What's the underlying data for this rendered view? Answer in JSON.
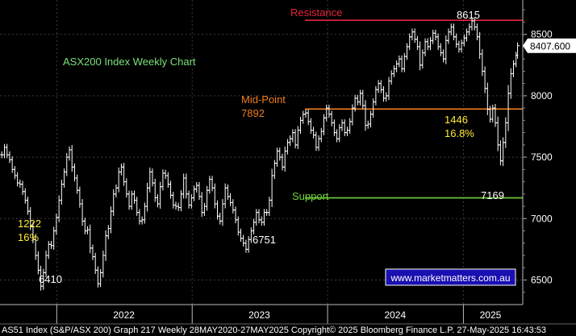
{
  "chart_data": {
    "type": "ohlc",
    "title": "ASX200 Index Weekly Chart",
    "watermark": "www.marketmatters.com.au",
    "ylim": [
      6300,
      8780
    ],
    "yticks": [
      6500,
      7000,
      7500,
      8000,
      8500
    ],
    "ytick_labels": [
      "6500",
      "7000",
      "7500",
      "8000",
      "8500"
    ],
    "last_price_label": "8407.600",
    "last_price": 8407.6,
    "x_start": "2021-08-01",
    "x_end": "2025-06-10",
    "year_separators": [
      "2022-01-01",
      "2023-01-01",
      "2024-01-01",
      "2025-01-01"
    ],
    "year_labels": [
      {
        "label": "2022",
        "date": "2022-07-01"
      },
      {
        "label": "2023",
        "date": "2023-07-01"
      },
      {
        "label": "2024",
        "date": "2024-07-01"
      },
      {
        "label": "2025",
        "date": "2025-03-15"
      }
    ],
    "grid": true,
    "colors": {
      "background": "#000000",
      "grid": "#3a3a3a",
      "price": "#ffffff",
      "resistance": "#e6243a",
      "midpoint": "#f07d1f",
      "support": "#6fd23a",
      "title": "#7be07b",
      "annotation_yellow": "#ffee33",
      "watermark_border": "#ffffff",
      "watermark_text": "#ffffff",
      "watermark_bg": "#1a0fb0"
    },
    "levels": {
      "resistance": {
        "label": "Resistance",
        "value": 8615,
        "from": "2023-11-01"
      },
      "midpoint": {
        "label": "Mid-Point",
        "value_label": "7892",
        "value": 7892,
        "from": "2023-11-01"
      },
      "support": {
        "label": "Support",
        "value": 7169,
        "from": "2023-11-01"
      }
    },
    "annotations": {
      "high": {
        "label": "8615",
        "value": 8615,
        "date": "2025-02-14"
      },
      "low_2025": {
        "label": "7169",
        "value": 7169,
        "date": "2025-04-07"
      },
      "low_2022": {
        "label": "6410",
        "value": 6410,
        "date": "2022-01-28"
      },
      "low_2023": {
        "label": "6751",
        "value": 6751,
        "date": "2023-10-27"
      },
      "move_2022": {
        "points": "1222",
        "pct": "16%"
      },
      "move_2025": {
        "points": "1446",
        "pct": "16.8%"
      }
    },
    "series": [
      {
        "points": [
          [
            "2021-08-06",
            7520
          ],
          [
            "2021-08-13",
            7580
          ],
          [
            "2021-08-20",
            7520
          ],
          [
            "2021-08-27",
            7480
          ],
          [
            "2021-09-03",
            7400
          ],
          [
            "2021-09-10",
            7350
          ],
          [
            "2021-09-17",
            7290
          ],
          [
            "2021-09-24",
            7280
          ],
          [
            "2021-10-01",
            7220
          ],
          [
            "2021-10-08",
            7150
          ],
          [
            "2021-10-15",
            7060
          ],
          [
            "2021-10-22",
            6940
          ],
          [
            "2021-10-29",
            6830
          ],
          [
            "2021-11-05",
            6700
          ],
          [
            "2021-11-12",
            6580
          ],
          [
            "2021-11-19",
            6450
          ],
          [
            "2021-11-26",
            6560
          ],
          [
            "2021-12-03",
            6700
          ],
          [
            "2021-12-10",
            6790
          ],
          [
            "2021-12-17",
            6780
          ],
          [
            "2021-12-24",
            6900
          ],
          [
            "2021-12-31",
            7010
          ],
          [
            "2022-01-07",
            7150
          ],
          [
            "2022-01-14",
            7280
          ],
          [
            "2022-01-21",
            7380
          ],
          [
            "2022-01-28",
            7500
          ],
          [
            "2022-02-04",
            7560
          ],
          [
            "2022-02-11",
            7420
          ],
          [
            "2022-02-18",
            7330
          ],
          [
            "2022-02-25",
            7230
          ],
          [
            "2022-03-04",
            7120
          ],
          [
            "2022-03-11",
            6980
          ],
          [
            "2022-03-18",
            6900
          ],
          [
            "2022-03-25",
            6910
          ],
          [
            "2022-04-01",
            6760
          ],
          [
            "2022-04-08",
            6690
          ],
          [
            "2022-04-15",
            6580
          ],
          [
            "2022-04-22",
            6470
          ],
          [
            "2022-04-29",
            6560
          ],
          [
            "2022-05-06",
            6700
          ],
          [
            "2022-05-13",
            6860
          ],
          [
            "2022-05-20",
            6920
          ],
          [
            "2022-05-27",
            7060
          ],
          [
            "2022-06-03",
            7200
          ],
          [
            "2022-06-10",
            7250
          ],
          [
            "2022-06-17",
            7380
          ],
          [
            "2022-06-24",
            7420
          ],
          [
            "2022-07-01",
            7300
          ],
          [
            "2022-07-08",
            7200
          ],
          [
            "2022-07-15",
            7100
          ],
          [
            "2022-07-22",
            7200
          ],
          [
            "2022-07-29",
            7150
          ],
          [
            "2022-08-05",
            7050
          ],
          [
            "2022-08-12",
            6980
          ],
          [
            "2022-08-19",
            6990
          ],
          [
            "2022-08-26",
            7100
          ],
          [
            "2022-09-02",
            7250
          ],
          [
            "2022-09-09",
            7380
          ],
          [
            "2022-09-16",
            7290
          ],
          [
            "2022-09-23",
            7170
          ],
          [
            "2022-09-30",
            7120
          ],
          [
            "2022-10-07",
            7260
          ],
          [
            "2022-10-14",
            7370
          ],
          [
            "2022-10-21",
            7350
          ],
          [
            "2022-10-28",
            7280
          ],
          [
            "2022-11-04",
            7190
          ],
          [
            "2022-11-11",
            7110
          ],
          [
            "2022-11-18",
            7100
          ],
          [
            "2022-11-25",
            7090
          ],
          [
            "2022-12-02",
            7200
          ],
          [
            "2022-12-09",
            7330
          ],
          [
            "2022-12-16",
            7200
          ],
          [
            "2022-12-23",
            7110
          ],
          [
            "2022-12-30",
            7170
          ],
          [
            "2023-01-06",
            7240
          ],
          [
            "2023-01-13",
            7270
          ],
          [
            "2023-01-20",
            7180
          ],
          [
            "2023-01-27",
            7050
          ],
          [
            "2023-02-03",
            7100
          ],
          [
            "2023-02-10",
            7230
          ],
          [
            "2023-02-17",
            7320
          ],
          [
            "2023-02-24",
            7250
          ],
          [
            "2023-03-03",
            7120
          ],
          [
            "2023-03-10",
            7020
          ],
          [
            "2023-03-17",
            6980
          ],
          [
            "2023-03-24",
            7120
          ],
          [
            "2023-03-31",
            7250
          ],
          [
            "2023-04-07",
            7180
          ],
          [
            "2023-04-14",
            7130
          ],
          [
            "2023-04-21",
            7070
          ],
          [
            "2023-04-28",
            6990
          ],
          [
            "2023-05-05",
            6890
          ],
          [
            "2023-05-12",
            6840
          ],
          [
            "2023-05-19",
            6800
          ],
          [
            "2023-05-26",
            6750
          ],
          [
            "2023-06-02",
            6830
          ],
          [
            "2023-06-09",
            6900
          ],
          [
            "2023-06-16",
            6970
          ],
          [
            "2023-06-23",
            7050
          ],
          [
            "2023-06-30",
            6990
          ],
          [
            "2023-07-07",
            6970
          ],
          [
            "2023-07-14",
            7050
          ],
          [
            "2023-07-21",
            7050
          ],
          [
            "2023-07-28",
            7150
          ],
          [
            "2023-08-04",
            7350
          ],
          [
            "2023-08-11",
            7450
          ],
          [
            "2023-08-18",
            7550
          ],
          [
            "2023-08-25",
            7500
          ],
          [
            "2023-09-01",
            7420
          ],
          [
            "2023-09-08",
            7550
          ],
          [
            "2023-09-15",
            7620
          ],
          [
            "2023-09-22",
            7650
          ],
          [
            "2023-09-29",
            7700
          ],
          [
            "2023-10-06",
            7600
          ],
          [
            "2023-10-13",
            7720
          ],
          [
            "2023-10-20",
            7800
          ],
          [
            "2023-10-27",
            7850
          ],
          [
            "2023-11-03",
            7860
          ],
          [
            "2023-11-10",
            7790
          ],
          [
            "2023-11-17",
            7720
          ],
          [
            "2023-11-24",
            7680
          ],
          [
            "2023-12-01",
            7580
          ],
          [
            "2023-12-08",
            7650
          ],
          [
            "2023-12-15",
            7710
          ],
          [
            "2023-12-22",
            7820
          ],
          [
            "2023-12-29",
            7900
          ],
          [
            "2024-01-05",
            7850
          ],
          [
            "2024-01-12",
            7780
          ],
          [
            "2024-01-19",
            7700
          ],
          [
            "2024-01-26",
            7650
          ],
          [
            "2024-02-02",
            7740
          ],
          [
            "2024-02-09",
            7780
          ],
          [
            "2024-02-16",
            7700
          ],
          [
            "2024-02-23",
            7720
          ],
          [
            "2024-03-01",
            7790
          ],
          [
            "2024-03-08",
            7900
          ],
          [
            "2024-03-15",
            7980
          ],
          [
            "2024-03-22",
            7950
          ],
          [
            "2024-03-29",
            8020
          ],
          [
            "2024-04-05",
            7920
          ],
          [
            "2024-04-12",
            7760
          ],
          [
            "2024-04-19",
            7770
          ],
          [
            "2024-04-26",
            7850
          ],
          [
            "2024-05-03",
            7950
          ],
          [
            "2024-05-10",
            8050
          ],
          [
            "2024-05-17",
            8100
          ],
          [
            "2024-05-24",
            8050
          ],
          [
            "2024-05-31",
            7980
          ],
          [
            "2024-06-07",
            8000
          ],
          [
            "2024-06-14",
            8120
          ],
          [
            "2024-06-21",
            8180
          ],
          [
            "2024-06-28",
            8220
          ],
          [
            "2024-07-05",
            8260
          ],
          [
            "2024-07-12",
            8300
          ],
          [
            "2024-07-19",
            8220
          ],
          [
            "2024-07-26",
            8320
          ],
          [
            "2024-08-02",
            8400
          ],
          [
            "2024-08-09",
            8480
          ],
          [
            "2024-08-16",
            8520
          ],
          [
            "2024-08-23",
            8460
          ],
          [
            "2024-08-30",
            8400
          ],
          [
            "2024-09-06",
            8250
          ],
          [
            "2024-09-13",
            8350
          ],
          [
            "2024-09-20",
            8440
          ],
          [
            "2024-09-27",
            8400
          ],
          [
            "2024-10-04",
            8450
          ],
          [
            "2024-10-11",
            8510
          ],
          [
            "2024-10-18",
            8480
          ],
          [
            "2024-10-25",
            8400
          ],
          [
            "2024-11-01",
            8350
          ],
          [
            "2024-11-08",
            8300
          ],
          [
            "2024-11-15",
            8450
          ],
          [
            "2024-11-22",
            8520
          ],
          [
            "2024-11-29",
            8560
          ],
          [
            "2024-12-06",
            8480
          ],
          [
            "2024-12-13",
            8420
          ],
          [
            "2024-12-20",
            8380
          ],
          [
            "2024-12-27",
            8430
          ],
          [
            "2025-01-03",
            8470
          ],
          [
            "2025-01-10",
            8520
          ],
          [
            "2025-01-17",
            8560
          ],
          [
            "2025-01-24",
            8610
          ],
          [
            "2025-01-31",
            8560
          ],
          [
            "2025-02-07",
            8480
          ],
          [
            "2025-02-14",
            8340
          ],
          [
            "2025-02-21",
            8200
          ],
          [
            "2025-02-28",
            8060
          ],
          [
            "2025-03-07",
            7890
          ],
          [
            "2025-03-14",
            7810
          ],
          [
            "2025-03-21",
            7900
          ],
          [
            "2025-03-28",
            7780
          ],
          [
            "2025-04-04",
            7600
          ],
          [
            "2025-04-11",
            7470
          ],
          [
            "2025-04-18",
            7620
          ],
          [
            "2025-04-25",
            7780
          ],
          [
            "2025-05-02",
            8020
          ],
          [
            "2025-05-09",
            8180
          ],
          [
            "2025-05-16",
            8260
          ],
          [
            "2025-05-23",
            8330
          ],
          [
            "2025-05-27",
            8407.6
          ]
        ]
      }
    ]
  },
  "footer": {
    "text": "AS51 Index (S&P/ASX 200) Graph 217  Weekly 28MAY2020-27MAY2025  Copyright© 2025 Bloomberg Finance L.P.   27-May-2025 16:43:53"
  }
}
